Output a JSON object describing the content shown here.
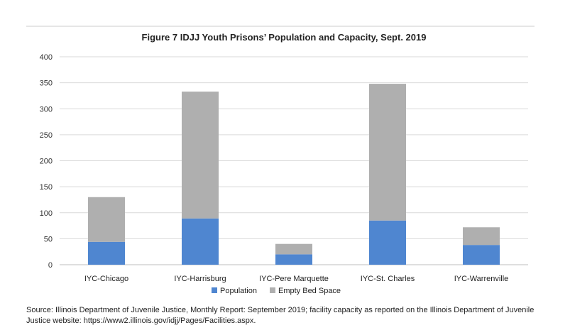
{
  "chart_data": {
    "type": "bar",
    "stacked": true,
    "title": "Figure 7 IDJJ Youth Prisons’ Population and Capacity, Sept. 2019",
    "categories": [
      "IYC-Chicago",
      "IYC-Harrisburg",
      "IYC-Pere Marquette",
      "IYC-St. Charles",
      "IYC-Warrenville"
    ],
    "series": [
      {
        "name": "Population",
        "color": "#4f86d0",
        "values": [
          44,
          89,
          20,
          85,
          38
        ]
      },
      {
        "name": "Empty Bed Space",
        "color": "#afafaf",
        "values": [
          86,
          244,
          20,
          263,
          34
        ]
      }
    ],
    "ylim": [
      0,
      400
    ],
    "yticks": [
      0,
      50,
      100,
      150,
      200,
      250,
      300,
      350,
      400
    ],
    "xlabel": "",
    "ylabel": "",
    "grid": true,
    "legend_position": "bottom"
  },
  "source_note": "Source: Illinois Department of Juvenile Justice, Monthly Report: September 2019; facility capacity as reported on the Illinois Department of Juvenile Justice website: https://www2.illinois.gov/idjj/Pages/Facilities.aspx."
}
